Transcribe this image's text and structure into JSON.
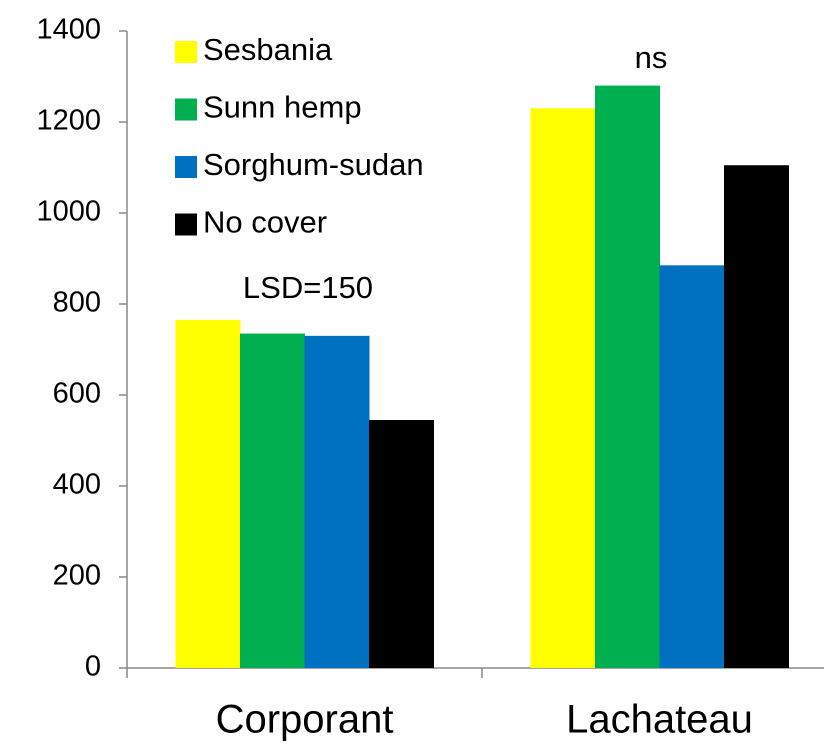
{
  "chart_data": {
    "type": "bar",
    "categories": [
      "Corporant",
      "Lachateau"
    ],
    "series": [
      {
        "name": "Sesbania",
        "color": "#ffff00",
        "values": [
          765,
          1230
        ]
      },
      {
        "name": "Sunn hemp",
        "color": "#00b050",
        "values": [
          735,
          1280
        ]
      },
      {
        "name": "Sorghum-sudan",
        "color": "#0070c0",
        "values": [
          730,
          885
        ]
      },
      {
        "name": "No cover",
        "color": "#000000",
        "values": [
          545,
          1105
        ]
      }
    ],
    "annotations": [
      "LSD=150",
      "ns"
    ],
    "ylim": [
      0,
      1400
    ],
    "yticks": [
      0,
      200,
      400,
      600,
      800,
      1000,
      1200,
      1400
    ],
    "grid": false,
    "legend": "upper left"
  }
}
